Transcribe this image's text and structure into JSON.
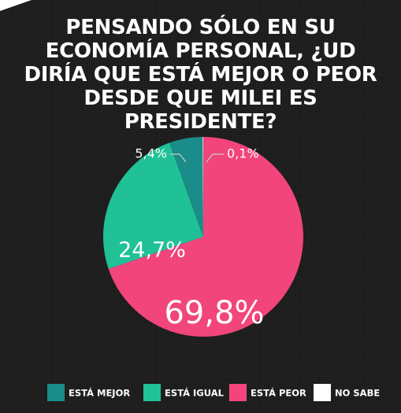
{
  "chart_data": {
    "type": "pie",
    "title": "PENSANDO SÓLO EN SU ECONOMÍA PERSONAL, ¿UD DIRÍA QUE ESTÁ MEJOR O PEOR DESDE QUE MILEI ES PRESIDENTE?",
    "categories": [
      "ESTÁ MEJOR",
      "ESTÁ IGUAL",
      "ESTÁ PEOR",
      "NO SABE"
    ],
    "values": [
      5.4,
      24.7,
      69.8,
      0.1
    ],
    "value_labels": [
      "5,4%",
      "24,7%",
      "69,8%",
      "0,1%"
    ],
    "colors": [
      "#1a8c8a",
      "#20c197",
      "#f1457b",
      "#ffffff"
    ]
  }
}
